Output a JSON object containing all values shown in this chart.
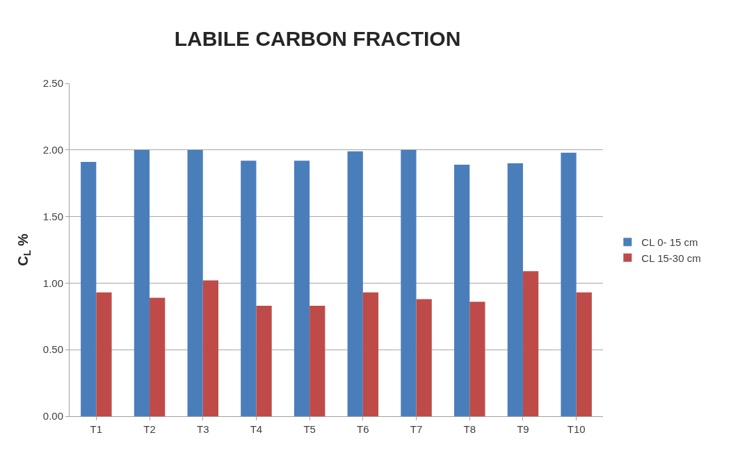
{
  "chart_data": {
    "type": "bar",
    "title": "LABILE CARBON FRACTION",
    "ylabel": "C$_{L}$ %",
    "categories": [
      "T1",
      "T2",
      "T3",
      "T4",
      "T5",
      "T6",
      "T7",
      "T8",
      "T9",
      "T10"
    ],
    "series": [
      {
        "name": "CL 0- 15 cm",
        "color": "#4a7ebb",
        "values": [
          1.91,
          2.0,
          2.0,
          1.92,
          1.92,
          1.99,
          2.0,
          1.89,
          1.9,
          1.98
        ]
      },
      {
        "name": "CL 15-30 cm",
        "color": "#be4b48",
        "values": [
          0.93,
          0.89,
          1.02,
          0.83,
          0.83,
          0.93,
          0.88,
          0.86,
          1.09,
          0.93
        ]
      }
    ],
    "ylim": [
      0,
      2.5
    ],
    "yticks": [
      {
        "value": 0,
        "label": "0.00"
      },
      {
        "value": 0.5,
        "label": "0.50"
      },
      {
        "value": 1,
        "label": "1.00"
      },
      {
        "value": 1.5,
        "label": "1.50"
      },
      {
        "value": 2,
        "label": "2.00"
      },
      {
        "value": 2.5,
        "label": "2.50"
      }
    ],
    "grid": "y",
    "legend": "right"
  }
}
